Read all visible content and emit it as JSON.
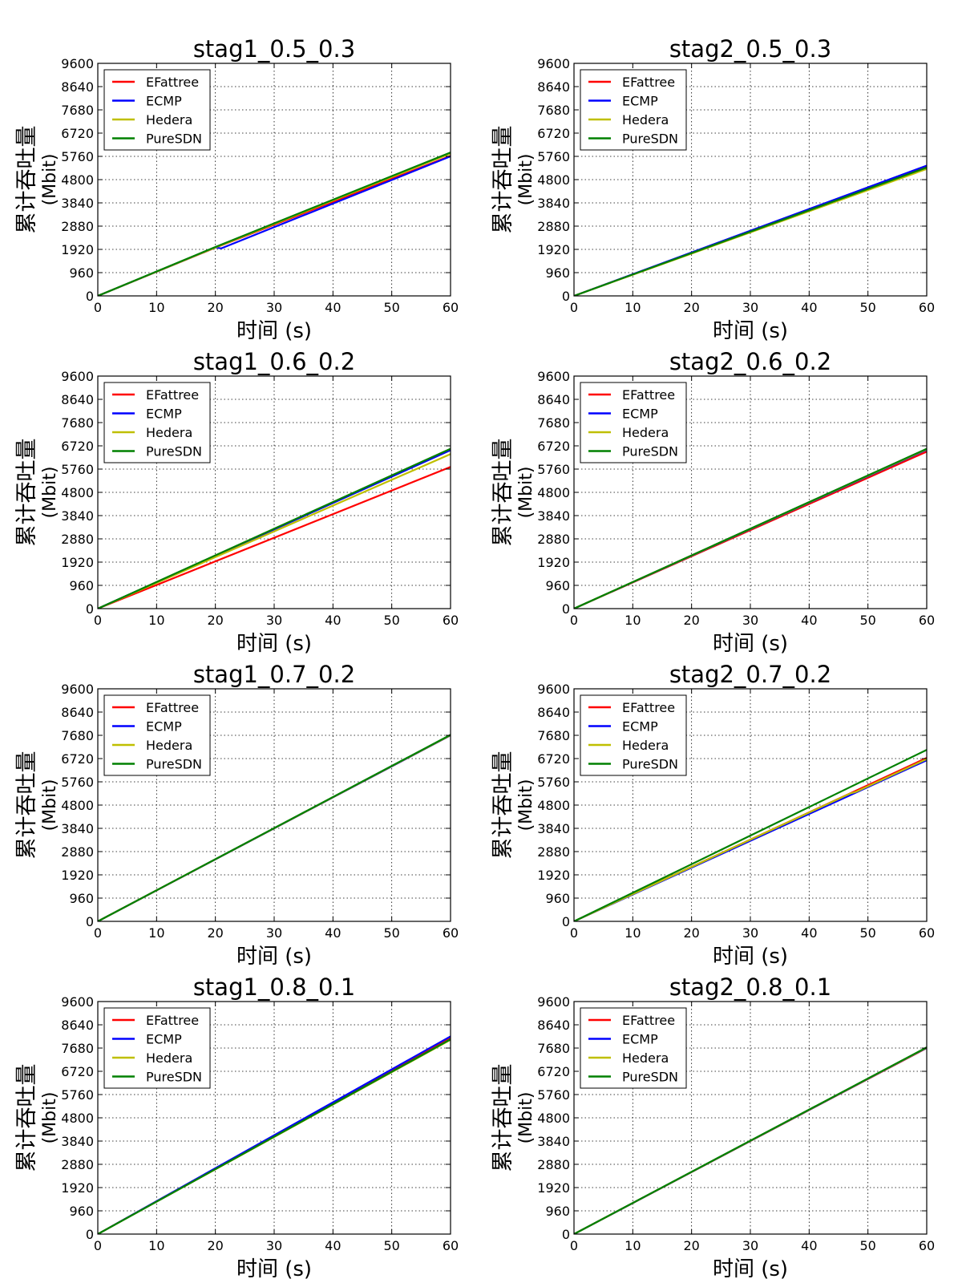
{
  "colors": {
    "EFattree": "#ff0000",
    "ECMP": "#0000ff",
    "Hedera": "#bfbf00",
    "PureSDN": "#008000"
  },
  "chart_data": [
    {
      "type": "line",
      "title": "stag1_0.5_0.3",
      "xlabel": "时间 (s)",
      "ylabel_line1": "累计吞吐量",
      "ylabel_line2": "(Mbit)",
      "xlim": [
        0,
        60
      ],
      "ylim": [
        0,
        9600
      ],
      "xticks": [
        "0",
        "10",
        "20",
        "30",
        "40",
        "50",
        "60"
      ],
      "yticks": [
        "0",
        "960",
        "1920",
        "2880",
        "3840",
        "4800",
        "5760",
        "6720",
        "7680",
        "8640",
        "9600"
      ],
      "grid": true,
      "legend": "top-left",
      "series": [
        {
          "name": "EFattree",
          "x": [
            0,
            20,
            60
          ],
          "y": [
            0,
            1990,
            5780
          ]
        },
        {
          "name": "ECMP",
          "x": [
            0,
            20,
            21,
            60
          ],
          "y": [
            0,
            2000,
            1960,
            5760
          ]
        },
        {
          "name": "Hedera",
          "x": [
            0,
            20,
            60
          ],
          "y": [
            0,
            2000,
            5880
          ]
        },
        {
          "name": "PureSDN",
          "x": [
            0,
            20,
            60
          ],
          "y": [
            0,
            2020,
            5920
          ]
        }
      ]
    },
    {
      "type": "line",
      "title": "stag2_0.5_0.3",
      "xlabel": "时间 (s)",
      "ylabel_line1": "累计吞吐量",
      "ylabel_line2": "(Mbit)",
      "xlim": [
        0,
        60
      ],
      "ylim": [
        0,
        9600
      ],
      "xticks": [
        "0",
        "10",
        "20",
        "30",
        "40",
        "50",
        "60"
      ],
      "yticks": [
        "0",
        "960",
        "1920",
        "2880",
        "3840",
        "4800",
        "5760",
        "6720",
        "7680",
        "8640",
        "9600"
      ],
      "grid": true,
      "legend": "top-left",
      "series": [
        {
          "name": "EFattree",
          "x": [
            0,
            60
          ],
          "y": [
            0,
            5330
          ]
        },
        {
          "name": "ECMP",
          "x": [
            0,
            60
          ],
          "y": [
            0,
            5380
          ]
        },
        {
          "name": "Hedera",
          "x": [
            0,
            60
          ],
          "y": [
            0,
            5240
          ]
        },
        {
          "name": "PureSDN",
          "x": [
            0,
            60
          ],
          "y": [
            0,
            5300
          ]
        }
      ]
    },
    {
      "type": "line",
      "title": "stag1_0.6_0.2",
      "xlabel": "时间 (s)",
      "ylabel_line1": "累计吞吐量",
      "ylabel_line2": "(Mbit)",
      "xlim": [
        0,
        60
      ],
      "ylim": [
        0,
        9600
      ],
      "xticks": [
        "0",
        "10",
        "20",
        "30",
        "40",
        "50",
        "60"
      ],
      "yticks": [
        "0",
        "960",
        "1920",
        "2880",
        "3840",
        "4800",
        "5760",
        "6720",
        "7680",
        "8640",
        "9600"
      ],
      "grid": true,
      "legend": "top-left",
      "series": [
        {
          "name": "EFattree",
          "x": [
            0,
            60
          ],
          "y": [
            0,
            5850
          ]
        },
        {
          "name": "ECMP",
          "x": [
            0,
            60
          ],
          "y": [
            0,
            6540
          ]
        },
        {
          "name": "Hedera",
          "x": [
            0,
            60
          ],
          "y": [
            0,
            6380
          ]
        },
        {
          "name": "PureSDN",
          "x": [
            0,
            60
          ],
          "y": [
            0,
            6600
          ]
        }
      ]
    },
    {
      "type": "line",
      "title": "stag2_0.6_0.2",
      "xlabel": "时间 (s)",
      "ylabel_line1": "累计吞吐量",
      "ylabel_line2": "(Mbit)",
      "xlim": [
        0,
        60
      ],
      "ylim": [
        0,
        9600
      ],
      "xticks": [
        "0",
        "10",
        "20",
        "30",
        "40",
        "50",
        "60"
      ],
      "yticks": [
        "0",
        "960",
        "1920",
        "2880",
        "3840",
        "4800",
        "5760",
        "6720",
        "7680",
        "8640",
        "9600"
      ],
      "grid": true,
      "legend": "top-left",
      "series": [
        {
          "name": "EFattree",
          "x": [
            0,
            60
          ],
          "y": [
            0,
            6480
          ]
        },
        {
          "name": "ECMP",
          "x": [
            0,
            60
          ],
          "y": [
            0,
            6560
          ]
        },
        {
          "name": "Hedera",
          "x": [
            0,
            60
          ],
          "y": [
            0,
            6580
          ]
        },
        {
          "name": "PureSDN",
          "x": [
            0,
            60
          ],
          "y": [
            0,
            6600
          ]
        }
      ]
    },
    {
      "type": "line",
      "title": "stag1_0.7_0.2",
      "xlabel": "时间 (s)",
      "ylabel_line1": "累计吞吐量",
      "ylabel_line2": "(Mbit)",
      "xlim": [
        0,
        60
      ],
      "ylim": [
        0,
        9600
      ],
      "xticks": [
        "0",
        "10",
        "20",
        "30",
        "40",
        "50",
        "60"
      ],
      "yticks": [
        "0",
        "960",
        "1920",
        "2880",
        "3840",
        "4800",
        "5760",
        "6720",
        "7680",
        "8640",
        "9600"
      ],
      "grid": true,
      "legend": "top-left",
      "series": [
        {
          "name": "EFattree",
          "x": [
            0,
            60
          ],
          "y": [
            0,
            7680
          ]
        },
        {
          "name": "ECMP",
          "x": [
            0,
            60
          ],
          "y": [
            0,
            7680
          ]
        },
        {
          "name": "Hedera",
          "x": [
            0,
            60
          ],
          "y": [
            0,
            7690
          ]
        },
        {
          "name": "PureSDN",
          "x": [
            0,
            60
          ],
          "y": [
            0,
            7700
          ]
        }
      ]
    },
    {
      "type": "line",
      "title": "stag2_0.7_0.2",
      "xlabel": "时间 (s)",
      "ylabel_line1": "累计吞吐量",
      "ylabel_line2": "(Mbit)",
      "xlim": [
        0,
        60
      ],
      "ylim": [
        0,
        9600
      ],
      "xticks": [
        "0",
        "10",
        "20",
        "30",
        "40",
        "50",
        "60"
      ],
      "yticks": [
        "0",
        "960",
        "1920",
        "2880",
        "3840",
        "4800",
        "5760",
        "6720",
        "7680",
        "8640",
        "9600"
      ],
      "grid": true,
      "legend": "top-left",
      "series": [
        {
          "name": "EFattree",
          "x": [
            0,
            60
          ],
          "y": [
            0,
            6750
          ]
        },
        {
          "name": "ECMP",
          "x": [
            0,
            60
          ],
          "y": [
            0,
            6650
          ]
        },
        {
          "name": "Hedera",
          "x": [
            0,
            47,
            48,
            60
          ],
          "y": [
            0,
            5280,
            5350,
            6700
          ]
        },
        {
          "name": "PureSDN",
          "x": [
            0,
            60
          ],
          "y": [
            0,
            7080
          ]
        }
      ]
    },
    {
      "type": "line",
      "title": "stag1_0.8_0.1",
      "xlabel": "时间 (s)",
      "ylabel_line1": "累计吞吐量",
      "ylabel_line2": "(Mbit)",
      "xlim": [
        0,
        60
      ],
      "ylim": [
        0,
        9600
      ],
      "xticks": [
        "0",
        "10",
        "20",
        "30",
        "40",
        "50",
        "60"
      ],
      "yticks": [
        "0",
        "960",
        "1920",
        "2880",
        "3840",
        "4800",
        "5760",
        "6720",
        "7680",
        "8640",
        "9600"
      ],
      "grid": true,
      "legend": "top-left",
      "series": [
        {
          "name": "EFattree",
          "x": [
            0,
            60
          ],
          "y": [
            0,
            8120
          ]
        },
        {
          "name": "ECMP",
          "x": [
            0,
            60
          ],
          "y": [
            0,
            8160
          ]
        },
        {
          "name": "Hedera",
          "x": [
            0,
            60
          ],
          "y": [
            0,
            8020
          ]
        },
        {
          "name": "PureSDN",
          "x": [
            0,
            60
          ],
          "y": [
            0,
            8040
          ]
        }
      ]
    },
    {
      "type": "line",
      "title": "stag2_0.8_0.1",
      "xlabel": "时间 (s)",
      "ylabel_line1": "累计吞吐量",
      "ylabel_line2": "(Mbit)",
      "xlim": [
        0,
        60
      ],
      "ylim": [
        0,
        9600
      ],
      "xticks": [
        "0",
        "10",
        "20",
        "30",
        "40",
        "50",
        "60"
      ],
      "yticks": [
        "0",
        "960",
        "1920",
        "2880",
        "3840",
        "4800",
        "5760",
        "6720",
        "7680",
        "8640",
        "9600"
      ],
      "grid": true,
      "legend": "top-left",
      "series": [
        {
          "name": "EFattree",
          "x": [
            0,
            60
          ],
          "y": [
            0,
            7680
          ]
        },
        {
          "name": "ECMP",
          "x": [
            0,
            60
          ],
          "y": [
            0,
            7690
          ]
        },
        {
          "name": "Hedera",
          "x": [
            0,
            60
          ],
          "y": [
            0,
            7700
          ]
        },
        {
          "name": "PureSDN",
          "x": [
            0,
            60
          ],
          "y": [
            0,
            7710
          ]
        }
      ]
    }
  ]
}
